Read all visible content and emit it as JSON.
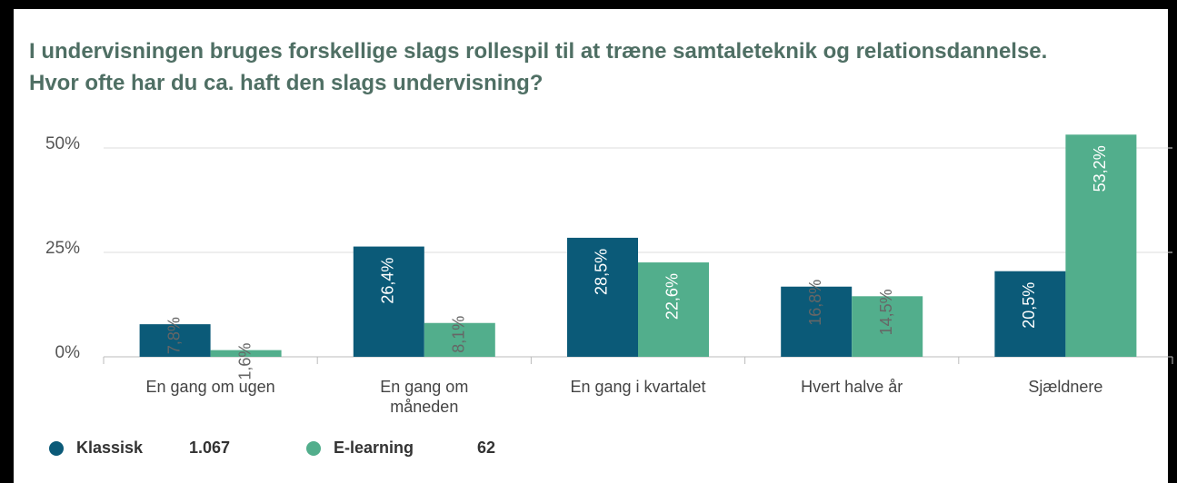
{
  "chart_data": {
    "type": "bar",
    "title": "I undervisningen bruges forskellige slags rollespil til at træne samtaleteknik og relationsdannelse. Hvor ofte har du ca. haft den slags undervisning?",
    "categories": [
      "En gang om ugen",
      "En gang om måneden",
      "En gang i kvartalet",
      "Hvert halve år",
      "Sjældnere"
    ],
    "series": [
      {
        "name": "Klassisk",
        "n": "1.067",
        "color": "#0b5a78",
        "values": [
          7.8,
          26.4,
          28.5,
          16.8,
          20.5
        ],
        "value_labels": [
          "7,8%",
          "26,4%",
          "28,5%",
          "16,8%",
          "20,5%"
        ]
      },
      {
        "name": "E-learning",
        "n": "62",
        "color": "#52ae8c",
        "values": [
          1.6,
          8.1,
          22.6,
          14.5,
          53.2
        ],
        "value_labels": [
          "1,6%",
          "8,1%",
          "22,6%",
          "14,5%",
          "53,2%"
        ]
      }
    ],
    "ylim": [
      0,
      55
    ],
    "yticks": [
      {
        "value": 0,
        "label": "0%"
      },
      {
        "value": 25,
        "label": "25%"
      },
      {
        "value": 50,
        "label": "50%"
      }
    ],
    "grid": true
  }
}
